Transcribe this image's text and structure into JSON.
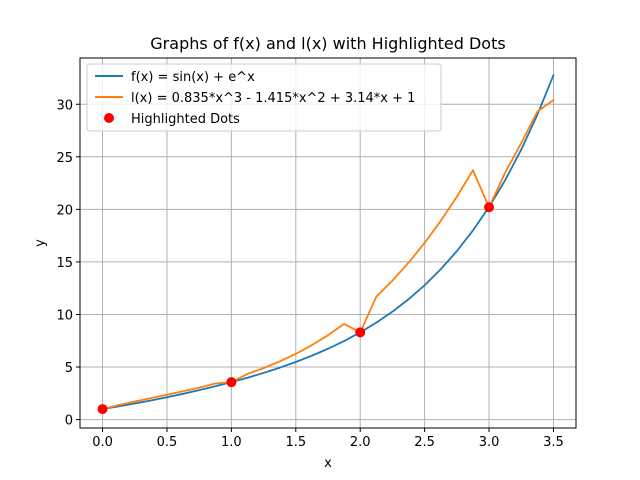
{
  "chart_data": {
    "type": "line",
    "title": "Graphs of f(x) and l(x) with Highlighted Dots",
    "xlabel": "x",
    "ylabel": "y",
    "xlim": [
      -0.175,
      3.675
    ],
    "ylim": [
      -0.8,
      34.4
    ],
    "xticks": [
      0.0,
      0.5,
      1.0,
      1.5,
      2.0,
      2.5,
      3.0,
      3.5
    ],
    "xtick_labels": [
      "0.0",
      "0.5",
      "1.0",
      "1.5",
      "2.0",
      "2.5",
      "3.0",
      "3.5"
    ],
    "yticks": [
      0,
      5,
      10,
      15,
      20,
      25,
      30
    ],
    "ytick_labels": [
      "0",
      "5",
      "10",
      "15",
      "20",
      "25",
      "30"
    ],
    "grid": true,
    "legend_position": "upper-left",
    "series": [
      {
        "name": "f(x) = sin(x) + e^x",
        "color": "#1f77b4",
        "x": [
          0.0,
          0.125,
          0.25,
          0.375,
          0.5,
          0.625,
          0.75,
          0.875,
          1.0,
          1.125,
          1.25,
          1.375,
          1.5,
          1.625,
          1.75,
          1.875,
          2.0,
          2.125,
          2.25,
          2.375,
          2.5,
          2.625,
          2.75,
          2.875,
          3.0,
          3.125,
          3.25,
          3.375,
          3.5
        ],
        "y": [
          1.0,
          1.258,
          1.532,
          1.821,
          2.128,
          2.453,
          2.799,
          3.166,
          3.56,
          3.982,
          4.439,
          4.936,
          5.479,
          6.077,
          6.739,
          7.475,
          8.298,
          9.222,
          10.266,
          11.447,
          12.781,
          14.3,
          16.027,
          17.992,
          20.227,
          22.772,
          25.686,
          29.003,
          32.766
        ]
      },
      {
        "name": "l(x) = 0.835*x^3 - 1.415*x^2 + 3.14*x + 1",
        "color": "#ff7f0e",
        "x": [
          0.0,
          0.125,
          0.25,
          0.375,
          0.5,
          0.625,
          0.75,
          0.875,
          1.0,
          1.125,
          1.25,
          1.375,
          1.5,
          1.625,
          1.75,
          1.875,
          2.0,
          2.125,
          2.25,
          2.375,
          2.5,
          2.625,
          2.75,
          2.875,
          3.0,
          3.125,
          3.25,
          3.375,
          3.5
        ],
        "y": [
          1.0,
          1.372,
          1.715,
          2.041,
          2.363,
          2.694,
          3.046,
          3.432,
          3.56,
          4.346,
          4.898,
          5.53,
          6.253,
          7.082,
          8.027,
          9.103,
          8.3,
          11.692,
          13.222,
          14.925,
          16.813,
          18.9,
          21.198,
          23.721,
          20.2,
          23.5,
          26.3,
          29.3,
          30.4
        ]
      }
    ],
    "highlighted_dots": {
      "name": "Highlighted Dots",
      "color": "#ff0000",
      "x": [
        0,
        1,
        2,
        3
      ],
      "y": [
        1.0,
        3.56,
        8.3,
        20.2
      ]
    }
  }
}
